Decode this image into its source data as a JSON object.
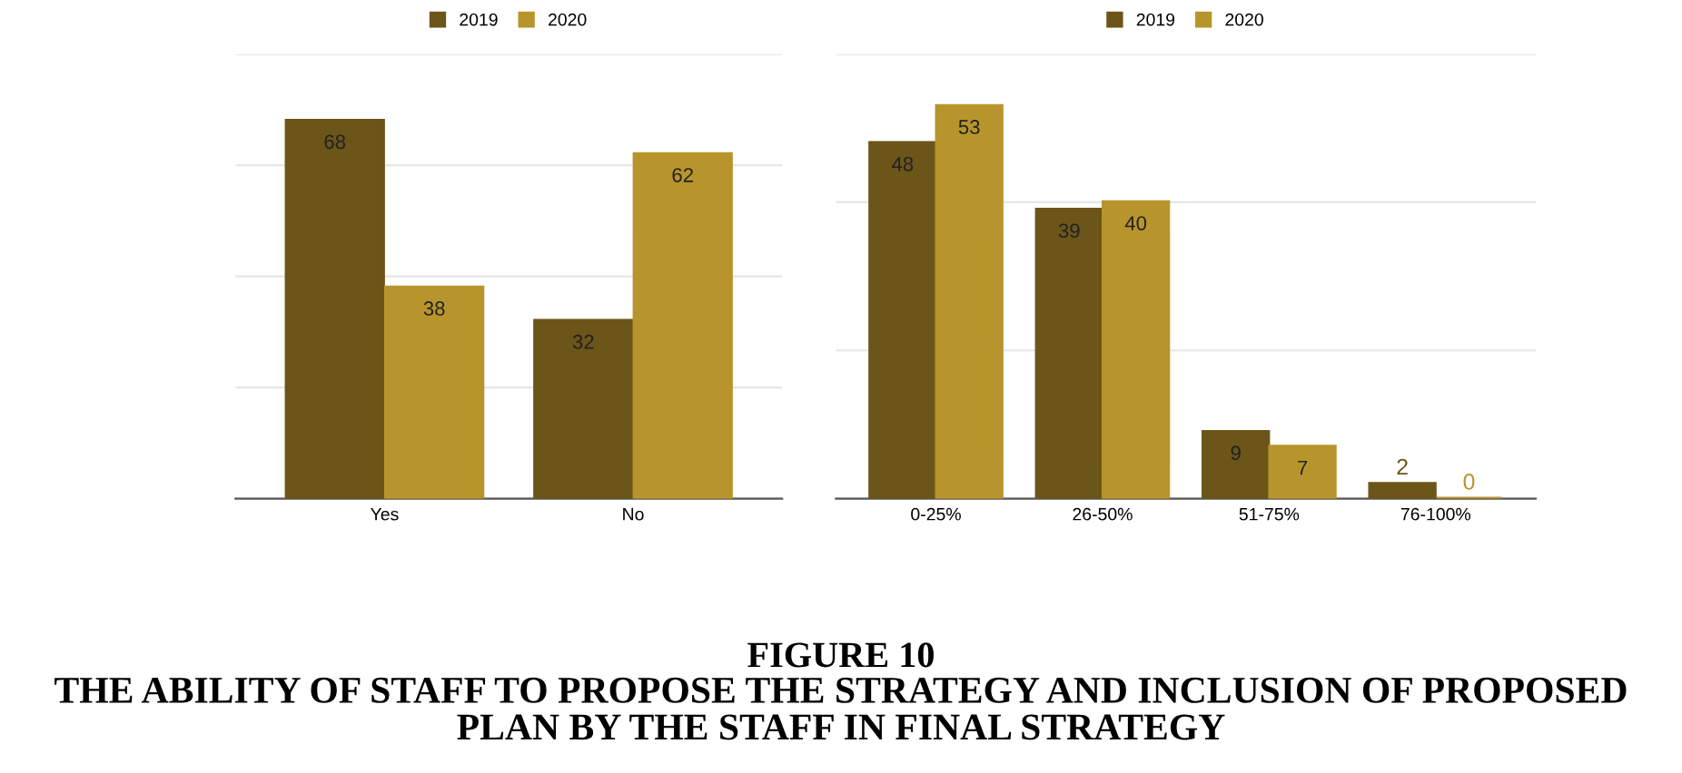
{
  "chart_data": [
    {
      "type": "bar",
      "categories": [
        "Yes",
        "No"
      ],
      "series": [
        {
          "name": "2019",
          "color": "#6b5518",
          "values": [
            68,
            32
          ]
        },
        {
          "name": "2020",
          "color": "#b8952c",
          "values": [
            38,
            62
          ]
        }
      ],
      "ylim": [
        0,
        80
      ],
      "yticks": [
        {
          "value": 0,
          "label": null
        },
        {
          "value": 20,
          "label": null
        },
        {
          "value": 40,
          "label": null
        },
        {
          "value": 60,
          "label": null
        },
        {
          "value": 80,
          "label": null
        }
      ],
      "tick_labels": "x",
      "grid": "y",
      "legend": "top",
      "data_labels": true,
      "annotations": [
        "FIGURE 10",
        "THE ABILITY OF STAFF TO PROPOSE THE STRATEGY AND INCLUSION OF PROPOSED PLAN BY THE STAFF IN FINAL STRATEGY"
      ]
    },
    {
      "type": "bar",
      "categories": [
        "0-25%",
        "26-50%",
        "51-75%",
        "76-100%"
      ],
      "series": [
        {
          "name": "2019",
          "color": "#6b5518",
          "values": [
            48,
            39,
            9,
            2
          ]
        },
        {
          "name": "2020",
          "color": "#b8952c",
          "values": [
            53,
            40,
            7,
            0
          ]
        }
      ],
      "ylim": [
        0,
        60
      ],
      "yticks": [
        {
          "value": 0,
          "label": null
        },
        {
          "value": 20,
          "label": null
        },
        {
          "value": 40,
          "label": null
        },
        {
          "value": 60,
          "label": null
        }
      ],
      "tick_labels": "x",
      "grid": "y",
      "legend": "top",
      "data_labels": true
    }
  ]
}
